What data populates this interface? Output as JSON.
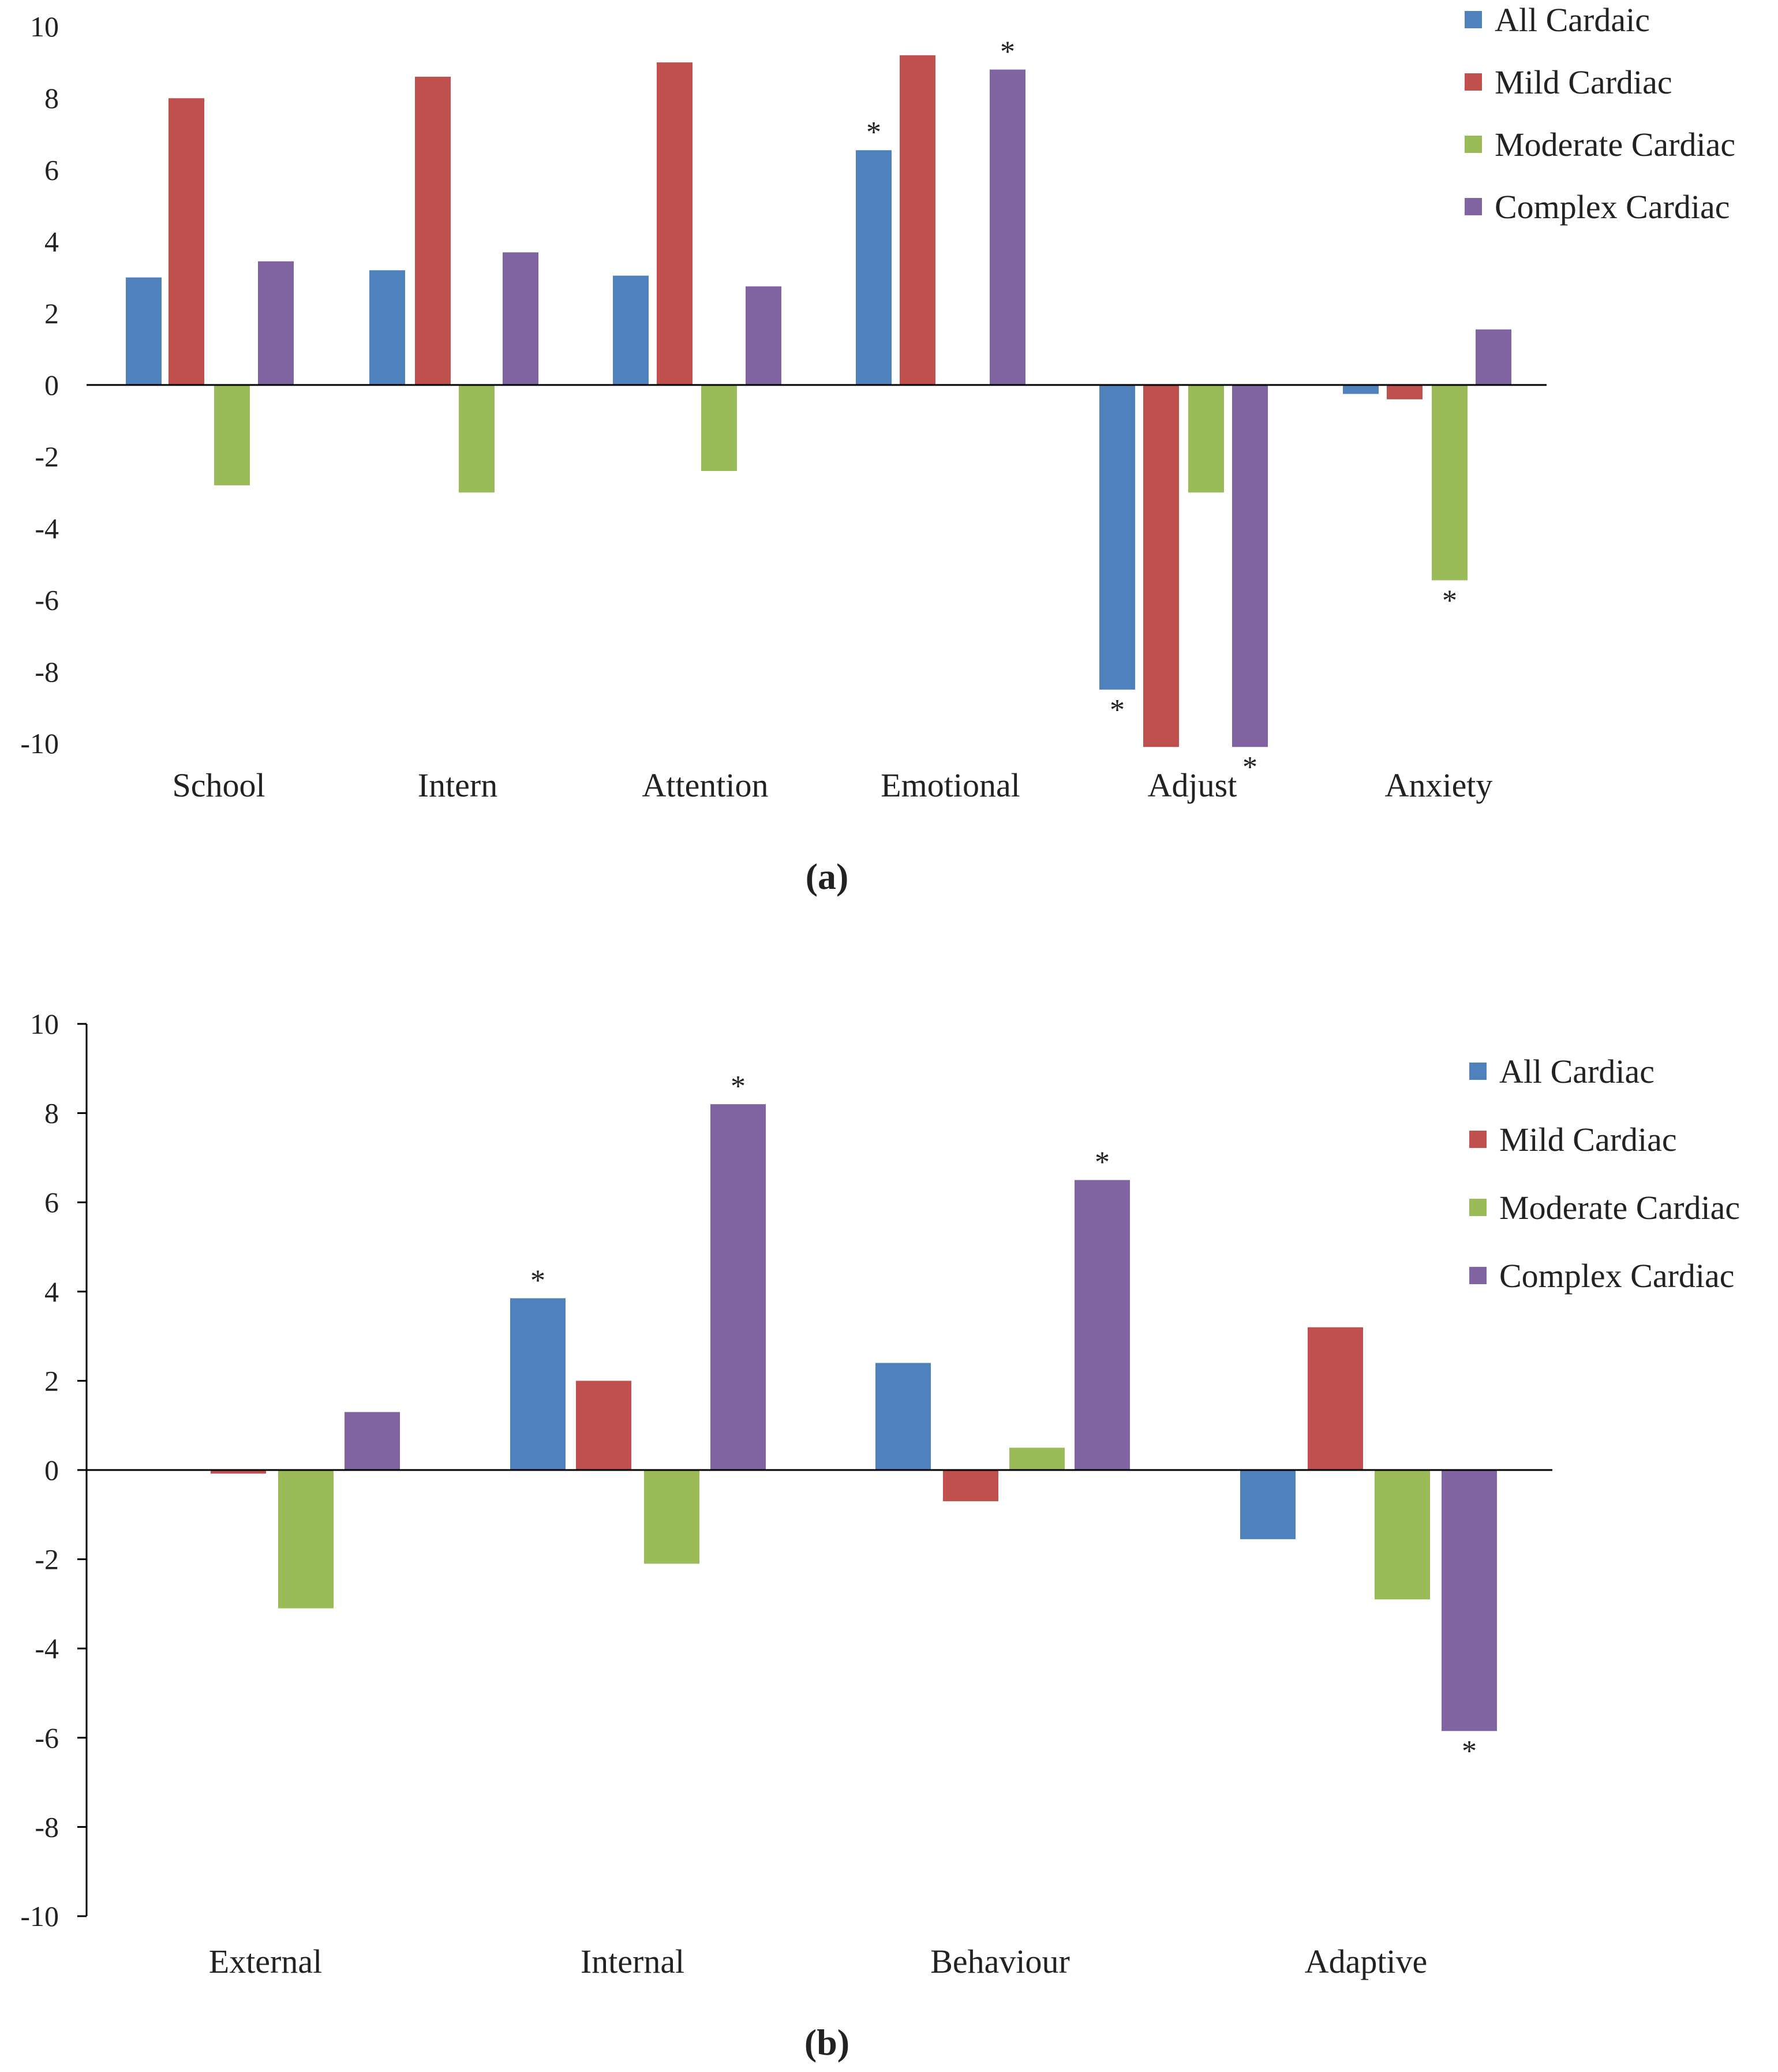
{
  "chart_data": [
    {
      "type": "bar",
      "panel_label": "(a)",
      "categories": [
        "School",
        "Intern",
        "Attention",
        "Emotional",
        "Adjust",
        "Anxiety"
      ],
      "series": [
        {
          "name": "All Cardaic",
          "color": "#4f81bd",
          "values": [
            3.0,
            3.2,
            3.05,
            6.55,
            -8.5,
            -0.25
          ]
        },
        {
          "name": "Mild Cardiac",
          "color": "#c0504d",
          "values": [
            8.0,
            8.6,
            9.0,
            9.2,
            -10.1,
            -0.4
          ]
        },
        {
          "name": "Moderate Cardiac",
          "color": "#9bbb59",
          "values": [
            -2.8,
            -3.0,
            -2.4,
            0,
            -3.0,
            -5.45
          ]
        },
        {
          "name": "Complex Cardiac",
          "color": "#8064a2",
          "values": [
            3.45,
            3.7,
            2.75,
            8.8,
            -10.1,
            1.55
          ]
        }
      ],
      "significance_marker": "*",
      "significant": [
        {
          "category": "Emotional",
          "series": "All Cardaic"
        },
        {
          "category": "Emotional",
          "series": "Complex Cardiac"
        },
        {
          "category": "Adjust",
          "series": "All Cardaic"
        },
        {
          "category": "Adjust",
          "series": "Complex Cardiac"
        },
        {
          "category": "Anxiety",
          "series": "Moderate Cardiac"
        }
      ],
      "ylim": [
        -10,
        10
      ],
      "yticks": [
        "10",
        "8",
        "6",
        "4",
        "2",
        "0",
        "-2",
        "-4",
        "-6",
        "-8",
        "-10"
      ],
      "legend": "top-right"
    },
    {
      "type": "bar",
      "panel_label": "(b)",
      "categories": [
        "External",
        "Internal",
        "Behaviour",
        "Adaptive"
      ],
      "series": [
        {
          "name": "All Cardiac",
          "color": "#4f81bd",
          "values": [
            0,
            3.85,
            2.4,
            -1.55
          ]
        },
        {
          "name": "Mild Cardiac",
          "color": "#c0504d",
          "values": [
            -0.08,
            2.0,
            -0.7,
            3.2
          ]
        },
        {
          "name": "Moderate Cardiac",
          "color": "#9bbb59",
          "values": [
            -3.1,
            -2.1,
            0.5,
            -2.9
          ]
        },
        {
          "name": "Complex Cardiac",
          "color": "#8064a2",
          "values": [
            1.3,
            8.2,
            6.5,
            -5.85
          ]
        }
      ],
      "significance_marker": "*",
      "significant": [
        {
          "category": "Internal",
          "series": "All Cardiac"
        },
        {
          "category": "Internal",
          "series": "Complex Cardiac"
        },
        {
          "category": "Behaviour",
          "series": "Complex Cardiac"
        },
        {
          "category": "Adaptive",
          "series": "Complex Cardiac"
        }
      ],
      "ylim": [
        -10,
        10
      ],
      "yticks": [
        "10",
        "8",
        "6",
        "4",
        "2",
        "0",
        "-2",
        "-4",
        "-6",
        "-8",
        "-10"
      ],
      "legend": "top-right"
    }
  ]
}
